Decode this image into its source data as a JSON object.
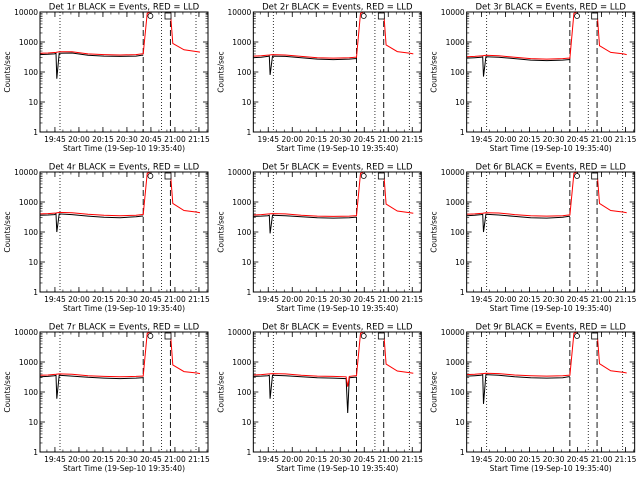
{
  "chart_data": {
    "type": "line",
    "layout": "3x3 grid",
    "y_scale": "log",
    "ylim": [
      1,
      10000
    ],
    "y_ticks": [
      1,
      10,
      100,
      1000,
      10000
    ],
    "y_tick_labels": [
      "1",
      "10",
      "100",
      "1000",
      "10000"
    ],
    "ylabel": "Counts/sec",
    "xlabel": "Start Time (19-Sep-10 19:35:40)",
    "x_tick_labels": [
      "19:45",
      "20:00",
      "20:15",
      "20:30",
      "20:45",
      "21:00",
      "21:15"
    ],
    "x_unit": "minutes from 19:35:40",
    "xlim": [
      0,
      105
    ],
    "x_ticks": [
      9.33,
      24.33,
      39.33,
      54.33,
      69.33,
      84.33,
      99.33
    ],
    "dashed_markers": [
      64.5,
      81.5
    ],
    "dotted_markers": [
      12.5,
      76,
      97.5
    ],
    "series_colors": {
      "events": "#000000",
      "lld": "#ff0000"
    },
    "panels": [
      {
        "title": "Det 1r BLACK = Events, RED = LLD",
        "events": {
          "x": [
            0,
            5,
            9,
            10,
            10.5,
            12,
            20,
            30,
            40,
            50,
            60,
            63.5,
            64.5
          ],
          "y": [
            380,
            390,
            400,
            420,
            60,
            420,
            430,
            360,
            340,
            330,
            340,
            360,
            360
          ]
        },
        "lld": {
          "x": [
            0,
            5,
            10,
            12,
            20,
            30,
            40,
            50,
            60,
            63.5,
            64.5,
            67,
            69,
            72,
            74,
            78,
            80,
            81.5,
            83,
            90,
            98,
            100
          ],
          "y": [
            420,
            430,
            450,
            470,
            470,
            400,
            380,
            370,
            380,
            400,
            400,
            9000,
            13000,
            13000,
            13000,
            13000,
            13000,
            10000,
            900,
            550,
            480,
            460
          ]
        }
      },
      {
        "title": "Det 2r BLACK = Events, RED = LLD",
        "events": {
          "x": [
            0,
            5,
            9,
            10,
            10.5,
            12,
            20,
            30,
            40,
            50,
            60,
            63.5,
            64.5
          ],
          "y": [
            300,
            310,
            330,
            340,
            80,
            340,
            330,
            300,
            270,
            260,
            270,
            280,
            280
          ]
        },
        "lld": {
          "x": [
            0,
            5,
            10,
            12,
            20,
            30,
            40,
            50,
            60,
            63.5,
            64.5,
            67,
            69,
            72,
            74,
            78,
            80,
            81.5,
            83,
            90,
            98,
            100
          ],
          "y": [
            340,
            350,
            370,
            380,
            370,
            330,
            300,
            290,
            300,
            310,
            310,
            9000,
            13000,
            13000,
            13000,
            13000,
            13000,
            10000,
            800,
            480,
            420,
            400
          ]
        }
      },
      {
        "title": "Det 3r BLACK = Events, RED = LLD",
        "events": {
          "x": [
            0,
            5,
            9,
            10,
            10.5,
            12,
            20,
            30,
            40,
            50,
            60,
            63.5,
            64.5
          ],
          "y": [
            290,
            300,
            310,
            320,
            70,
            320,
            310,
            280,
            250,
            240,
            250,
            260,
            260
          ]
        },
        "lld": {
          "x": [
            0,
            5,
            10,
            12,
            20,
            30,
            40,
            50,
            60,
            63.5,
            64.5,
            67,
            69,
            72,
            74,
            78,
            80,
            81.5,
            83,
            90,
            98,
            100
          ],
          "y": [
            320,
            330,
            350,
            360,
            350,
            310,
            280,
            270,
            280,
            290,
            290,
            9000,
            13000,
            13000,
            13000,
            13000,
            13000,
            10000,
            750,
            450,
            400,
            380
          ]
        }
      },
      {
        "title": "Det 4r BLACK = Events, RED = LLD",
        "events": {
          "x": [
            0,
            5,
            9,
            10,
            10.5,
            12,
            20,
            30,
            40,
            50,
            60,
            63.5,
            64.5
          ],
          "y": [
            360,
            370,
            380,
            400,
            100,
            400,
            380,
            340,
            310,
            300,
            320,
            340,
            340
          ]
        },
        "lld": {
          "x": [
            0,
            5,
            10,
            12,
            20,
            30,
            40,
            50,
            60,
            63.5,
            64.5,
            67,
            69,
            72,
            74,
            78,
            80,
            81.5,
            83,
            90,
            98,
            100
          ],
          "y": [
            400,
            410,
            430,
            450,
            440,
            390,
            360,
            350,
            360,
            380,
            380,
            9000,
            13000,
            13000,
            13000,
            13000,
            13000,
            10000,
            900,
            520,
            460,
            440
          ]
        }
      },
      {
        "title": "Det 5r BLACK = Events, RED = LLD",
        "events": {
          "x": [
            0,
            5,
            9,
            10,
            10.5,
            12,
            20,
            30,
            40,
            50,
            60,
            63.5,
            64.5
          ],
          "y": [
            330,
            340,
            350,
            360,
            90,
            360,
            350,
            320,
            300,
            290,
            300,
            310,
            310
          ]
        },
        "lld": {
          "x": [
            0,
            5,
            10,
            12,
            20,
            30,
            40,
            50,
            60,
            63.5,
            64.5,
            67,
            69,
            72,
            74,
            78,
            80,
            81.5,
            83,
            90,
            98,
            100
          ],
          "y": [
            370,
            380,
            400,
            410,
            400,
            360,
            340,
            330,
            340,
            350,
            350,
            9000,
            13000,
            13000,
            13000,
            13000,
            13000,
            10000,
            850,
            500,
            440,
            420
          ]
        }
      },
      {
        "title": "Det 6r BLACK = Events, RED = LLD",
        "events": {
          "x": [
            0,
            5,
            9,
            10,
            10.5,
            12,
            20,
            30,
            40,
            50,
            60,
            63.5,
            64.5
          ],
          "y": [
            350,
            360,
            380,
            390,
            100,
            390,
            370,
            330,
            300,
            290,
            310,
            330,
            330
          ]
        },
        "lld": {
          "x": [
            0,
            5,
            10,
            12,
            20,
            30,
            40,
            50,
            60,
            63.5,
            64.5,
            67,
            69,
            72,
            74,
            78,
            80,
            81.5,
            83,
            90,
            98,
            100
          ],
          "y": [
            390,
            400,
            420,
            440,
            430,
            380,
            350,
            340,
            350,
            370,
            370,
            9000,
            13000,
            13000,
            13000,
            13000,
            13000,
            10000,
            900,
            520,
            460,
            440
          ]
        }
      },
      {
        "title": "Det 7r BLACK = Events, RED = LLD",
        "events": {
          "x": [
            0,
            5,
            9,
            10,
            10.5,
            12,
            20,
            30,
            40,
            50,
            60,
            63.5,
            64.5
          ],
          "y": [
            320,
            330,
            350,
            360,
            60,
            360,
            340,
            310,
            290,
            280,
            290,
            300,
            300
          ]
        },
        "lld": {
          "x": [
            0,
            5,
            10,
            12,
            20,
            30,
            40,
            50,
            60,
            63.5,
            64.5,
            67,
            69,
            72,
            74,
            78,
            80,
            81.5,
            83,
            90,
            98,
            100
          ],
          "y": [
            360,
            370,
            390,
            400,
            390,
            350,
            330,
            320,
            330,
            340,
            340,
            9000,
            13000,
            13000,
            13000,
            13000,
            13000,
            10000,
            800,
            480,
            430,
            410
          ]
        }
      },
      {
        "title": "Det 8r BLACK = Events, RED = LLD",
        "events": {
          "x": [
            0,
            5,
            9,
            10,
            10.5,
            12,
            20,
            30,
            40,
            50,
            58,
            59,
            60,
            63.5,
            64.5
          ],
          "y": [
            330,
            340,
            350,
            360,
            60,
            360,
            350,
            320,
            300,
            290,
            280,
            20,
            300,
            310,
            310
          ]
        },
        "lld": {
          "x": [
            0,
            5,
            10,
            12,
            20,
            30,
            40,
            50,
            58,
            59,
            60,
            63.5,
            64.5,
            67,
            69,
            72,
            74,
            78,
            80,
            81.5,
            83,
            90,
            98,
            100
          ],
          "y": [
            370,
            380,
            400,
            410,
            400,
            360,
            340,
            330,
            320,
            150,
            330,
            350,
            350,
            9000,
            13000,
            13000,
            13000,
            13000,
            13000,
            10000,
            850,
            500,
            440,
            420
          ]
        }
      },
      {
        "title": "Det 9r BLACK = Events, RED = LLD",
        "events": {
          "x": [
            0,
            5,
            9,
            10,
            10.5,
            12,
            20,
            30,
            40,
            50,
            60,
            63.5,
            64.5
          ],
          "y": [
            340,
            350,
            360,
            380,
            40,
            380,
            360,
            320,
            300,
            290,
            300,
            320,
            320
          ]
        },
        "lld": {
          "x": [
            0,
            5,
            10,
            12,
            20,
            30,
            40,
            50,
            60,
            63.5,
            64.5,
            67,
            69,
            72,
            74,
            78,
            80,
            81.5,
            83,
            90,
            98,
            100
          ],
          "y": [
            380,
            390,
            410,
            420,
            410,
            370,
            350,
            340,
            350,
            360,
            360,
            9000,
            13000,
            13000,
            13000,
            13000,
            13000,
            10000,
            880,
            510,
            450,
            430
          ]
        }
      }
    ]
  }
}
